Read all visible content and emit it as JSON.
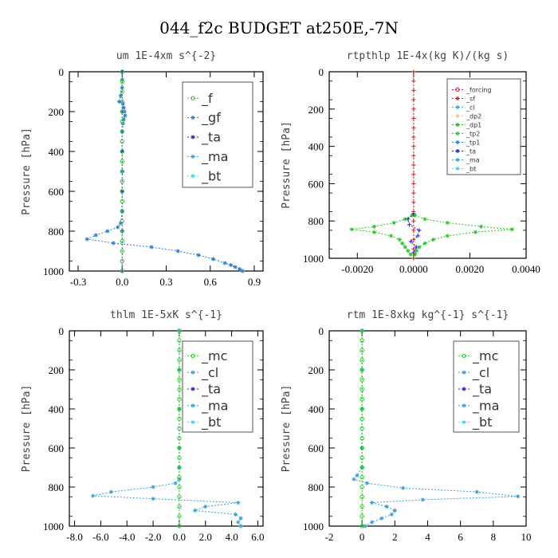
{
  "figure_title": "044_f2c  BUDGET at250E,-7N",
  "colors": {
    "ta": "#1f1fd0",
    "ma": "#3aa0d8",
    "bt": "#33ddee",
    "gf": "#2a7fcf",
    "green": "#22cc22",
    "forcing": "#cc2222",
    "cl": "#e8c020",
    "dp2": "#e0d080",
    "dp1": "#33aa33"
  },
  "chart_data": [
    {
      "type": "line",
      "title": "um   1E-4xm  s^{-2}",
      "ylabel": "Pressure [hPa]",
      "xlim": [
        -0.36,
        0.96
      ],
      "ylim": [
        1000,
        0
      ],
      "xticks": [
        "-0.3",
        "0.0",
        "0.3",
        "0.6",
        "0.9"
      ],
      "xtick_values": [
        -0.3,
        0.0,
        0.3,
        0.6,
        0.9
      ],
      "yticks": [
        "0",
        "200",
        "400",
        "600",
        "800",
        "1000"
      ],
      "legend_font": 16,
      "legend": [
        "_f",
        "_gf",
        "_ta",
        "_ma",
        "_bt"
      ],
      "series": [
        {
          "key": "gf",
          "color_key": "gf",
          "marker": "star",
          "y": [
            0,
            40,
            80,
            120,
            150,
            160,
            180,
            200,
            220,
            240,
            260,
            300,
            400,
            500,
            600,
            700,
            760,
            780,
            800,
            820,
            840,
            860,
            880,
            900,
            920,
            940,
            960,
            970,
            980,
            990,
            1000
          ],
          "x": [
            0,
            0,
            0,
            -0.01,
            -0.02,
            0.005,
            0.01,
            0.015,
            0.02,
            0.01,
            0.005,
            0,
            0,
            0,
            0,
            0,
            -0.01,
            -0.03,
            -0.1,
            -0.18,
            -0.24,
            -0.06,
            0.2,
            0.38,
            0.52,
            0.62,
            0.7,
            0.74,
            0.77,
            0.8,
            0.82
          ]
        },
        {
          "key": "ta",
          "color_key": "ta",
          "marker": "plus",
          "y": [
            0,
            200,
            400,
            600,
            800,
            1000
          ],
          "x": [
            0,
            0,
            0,
            0,
            0,
            0
          ]
        },
        {
          "key": "f",
          "color_key": "green",
          "marker": "circle",
          "y": [
            0,
            50,
            100,
            150,
            200,
            250,
            300,
            350,
            400,
            450,
            500,
            550,
            600,
            650,
            700,
            750,
            800,
            850,
            900,
            950,
            1000
          ],
          "x": [
            0,
            0,
            0,
            0,
            0,
            0,
            0,
            0,
            0,
            0,
            0,
            0,
            0,
            0,
            0,
            0,
            0,
            0,
            0,
            0,
            0
          ]
        }
      ]
    },
    {
      "type": "line",
      "title": "rtpthlp   1E-4x(kg K)/(kg s)",
      "ylabel": "Pressure [hPa]",
      "xlim": [
        -0.003,
        0.004
      ],
      "ylim": [
        1000,
        0
      ],
      "xticks": [
        "-0.0020",
        "0.0000",
        "0.0020",
        "0.0040"
      ],
      "xtick_values": [
        -0.002,
        0.0,
        0.002,
        0.004
      ],
      "yticks": [
        "0",
        "200",
        "400",
        "600",
        "800",
        "1000"
      ],
      "legend_font": 8,
      "legend": [
        "_forcing",
        "_sf",
        "_cl",
        "_dp2",
        "_dp1",
        "_tp2",
        "_tp1",
        "_ta",
        "_ma",
        "_bt"
      ],
      "series": [
        {
          "key": "tp2-upper",
          "color_key": "green",
          "marker": "star",
          "y": [
            770,
            790,
            810,
            830,
            845,
            860,
            880,
            900,
            920,
            940,
            960,
            980
          ],
          "x": [
            5e-05,
            0.0004,
            0.0012,
            0.0024,
            0.0035,
            0.0022,
            0.0012,
            0.0007,
            0.0004,
            0.0002,
            0.0001,
            5e-05
          ]
        },
        {
          "key": "tp2-lower",
          "color_key": "green",
          "marker": "star",
          "y": [
            770,
            790,
            810,
            830,
            845,
            860,
            880,
            900,
            920,
            940,
            960,
            980
          ],
          "x": [
            -5e-05,
            -0.0003,
            -0.0007,
            -0.0014,
            -0.0022,
            -0.0014,
            -0.0008,
            -0.0005,
            -0.0004,
            -0.0003,
            -0.0002,
            -0.0001
          ]
        },
        {
          "key": "ta",
          "color_key": "ta",
          "marker": "plus",
          "y": [
            760,
            790,
            820,
            850,
            880,
            910,
            940,
            970
          ],
          "x": [
            0,
            -0.0002,
            -0.00015,
            0.0002,
            0.00015,
            -0.0001,
            0.0001,
            0
          ]
        },
        {
          "key": "forcing",
          "color_key": "forcing",
          "marker": "plus",
          "y": [
            0,
            50,
            100,
            150,
            200,
            250,
            300,
            350,
            400,
            450,
            500,
            550,
            600,
            650,
            700,
            750,
            800,
            850,
            900,
            950,
            1000
          ],
          "x": [
            0,
            0,
            0,
            0,
            0,
            0,
            0,
            0,
            0,
            0,
            0,
            0,
            0,
            0,
            0,
            0,
            0,
            0,
            0,
            0,
            0
          ]
        }
      ]
    },
    {
      "type": "line",
      "title": "thlm   1E-5xK  s^{-1}",
      "ylabel": "Pressure [hPa]",
      "xlim": [
        -8.4,
        6.4
      ],
      "ylim": [
        1000,
        0
      ],
      "xticks": [
        "-8.0",
        "-6.0",
        "-4.0",
        "-2.0",
        "0.0",
        "2.0",
        "4.0",
        "6.0"
      ],
      "xtick_values": [
        -8,
        -6,
        -4,
        -2,
        0,
        2,
        4,
        6
      ],
      "yticks": [
        "0",
        "200",
        "400",
        "600",
        "800",
        "1000"
      ],
      "legend_font": 16,
      "legend": [
        "_mc",
        "_cl",
        "_ta",
        "_ma",
        "_bt"
      ],
      "series": [
        {
          "key": "cl",
          "color_key": "ma",
          "marker": "star",
          "y": [
            0,
            200,
            400,
            600,
            700,
            760,
            780,
            800,
            825,
            845,
            860,
            880,
            900,
            920,
            940,
            960,
            980,
            1000
          ],
          "x": [
            0,
            0,
            0,
            0,
            0,
            0,
            -0.3,
            -2.0,
            -5.2,
            -6.6,
            -2.0,
            4.5,
            2.0,
            1.2,
            4.3,
            4.7,
            4.5,
            4.7
          ]
        },
        {
          "key": "mc",
          "color_key": "green",
          "marker": "circle",
          "y": [
            0,
            50,
            100,
            150,
            200,
            250,
            300,
            350,
            400,
            450,
            500,
            550,
            600,
            650,
            700,
            750,
            800,
            850,
            900,
            950,
            1000
          ],
          "x": [
            0,
            0,
            0,
            0,
            0,
            0,
            0,
            0,
            0,
            0,
            0,
            0,
            0,
            0,
            0,
            0,
            0,
            0,
            0,
            0,
            0
          ]
        }
      ]
    },
    {
      "type": "line",
      "title": "rtm   1E-8xkg  kg^{-1} s^{-1}",
      "ylabel": "Pressure [hPa]",
      "xlim": [
        -2,
        10
      ],
      "ylim": [
        1000,
        0
      ],
      "xticks": [
        "-2",
        "0",
        "2",
        "4",
        "6",
        "8",
        "10"
      ],
      "xtick_values": [
        -2,
        0,
        2,
        4,
        6,
        8,
        10
      ],
      "yticks": [
        "0",
        "200",
        "400",
        "600",
        "800",
        "1000"
      ],
      "legend_font": 16,
      "legend": [
        "_mc",
        "_cl",
        "_ta",
        "_ma",
        "_bt"
      ],
      "series": [
        {
          "key": "cl",
          "color_key": "ma",
          "marker": "star",
          "y": [
            0,
            200,
            400,
            600,
            700,
            740,
            760,
            780,
            805,
            825,
            848,
            865,
            880,
            900,
            920,
            940,
            960,
            980,
            1000
          ],
          "x": [
            0,
            0,
            0,
            0,
            0,
            -0.3,
            -0.5,
            0.3,
            2.5,
            7.0,
            9.5,
            3.7,
            0.6,
            1.5,
            2.0,
            1.8,
            1.2,
            0.6,
            0.2
          ]
        },
        {
          "key": "mc",
          "color_key": "green",
          "marker": "circle",
          "y": [
            0,
            50,
            100,
            150,
            200,
            250,
            300,
            350,
            400,
            450,
            500,
            550,
            600,
            650,
            700,
            750,
            800,
            850,
            900,
            950,
            1000
          ],
          "x": [
            0,
            0,
            0,
            0,
            0,
            0,
            0,
            0,
            0,
            0,
            0,
            0,
            0,
            0,
            0,
            0,
            0,
            0,
            0,
            0,
            0
          ]
        }
      ]
    }
  ]
}
